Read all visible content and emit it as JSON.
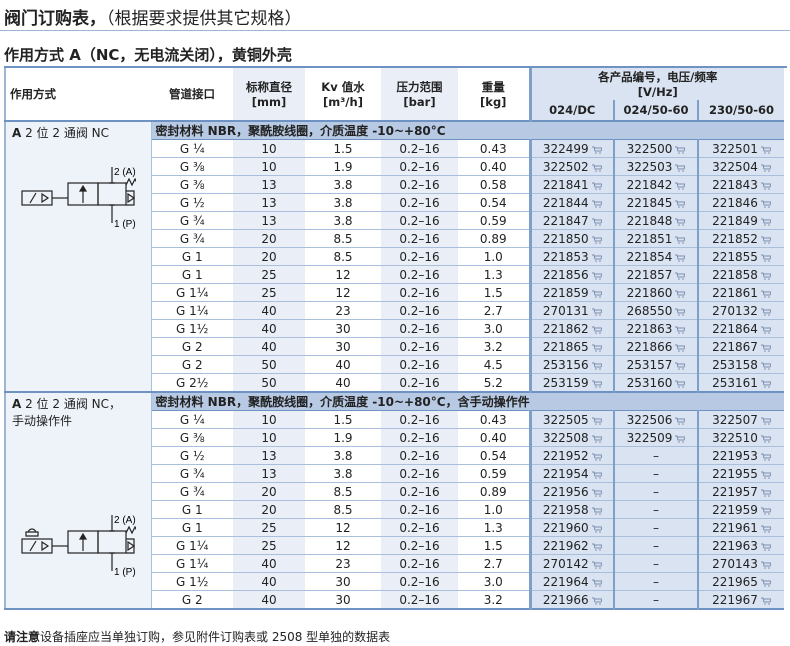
{
  "title": {
    "main": "阀门订购表，",
    "paren": "（根据要求提供其它规格）"
  },
  "subtitle": "作用方式 A（NC，无电流关闭），黄铜外壳",
  "headers": {
    "mode": "作用方式",
    "port": "管道接口",
    "dn": "标称直径",
    "dn_unit": "[mm]",
    "kv": "Kv 值水",
    "kv_unit": "[m³/h]",
    "pressure": "压力范围",
    "pressure_unit": "[bar]",
    "weight": "重量",
    "weight_unit": "[kg]",
    "codes": "各产品编号，电压/频率",
    "codes_unit": "[V/Hz]",
    "v1": "024/DC",
    "v2": "024/50-60",
    "v3": "230/50-60"
  },
  "sections": [
    {
      "valve_bold": "A",
      "valve": " 2 位 2 通阀 NC",
      "valve2": "",
      "note": "密封材料 NBR，聚酰胺线圈，介质温度 -10~+80°C",
      "rows": [
        [
          "G ¼",
          "10",
          "1.5",
          "0.2–16",
          "0.43",
          "322499",
          "322500",
          "322501"
        ],
        [
          "G ⅜",
          "10",
          "1.9",
          "0.2–16",
          "0.40",
          "322502",
          "322503",
          "322504"
        ],
        [
          "G ⅜",
          "13",
          "3.8",
          "0.2–16",
          "0.58",
          "221841",
          "221842",
          "221843"
        ],
        [
          "G ½",
          "13",
          "3.8",
          "0.2–16",
          "0.54",
          "221844",
          "221845",
          "221846"
        ],
        [
          "G ¾",
          "13",
          "3.8",
          "0.2–16",
          "0.59",
          "221847",
          "221848",
          "221849"
        ],
        [
          "G ¾",
          "20",
          "8.5",
          "0.2–16",
          "0.89",
          "221850",
          "221851",
          "221852"
        ],
        [
          "G 1",
          "20",
          "8.5",
          "0.2–16",
          "1.0",
          "221853",
          "221854",
          "221855"
        ],
        [
          "G 1",
          "25",
          "12",
          "0.2–16",
          "1.3",
          "221856",
          "221857",
          "221858"
        ],
        [
          "G 1¼",
          "25",
          "12",
          "0.2–16",
          "1.5",
          "221859",
          "221860",
          "221861"
        ],
        [
          "G 1¼",
          "40",
          "23",
          "0.2–16",
          "2.7",
          "270131",
          "268550",
          "270132"
        ],
        [
          "G 1½",
          "40",
          "30",
          "0.2–16",
          "3.0",
          "221862",
          "221863",
          "221864"
        ],
        [
          "G 2",
          "40",
          "30",
          "0.2–16",
          "3.2",
          "221865",
          "221866",
          "221867"
        ],
        [
          "G 2",
          "50",
          "40",
          "0.2–16",
          "4.5",
          "253156",
          "253157",
          "253158"
        ],
        [
          "G 2½",
          "50",
          "40",
          "0.2–16",
          "5.2",
          "253159",
          "253160",
          "253161"
        ]
      ]
    },
    {
      "valve_bold": "A",
      "valve": " 2 位 2 通阀 NC，",
      "valve2": "手动操作件",
      "note": "密封材料 NBR，聚酰胺线圈，介质温度 -10~+80°C，含手动操作件",
      "rows": [
        [
          "G ¼",
          "10",
          "1.5",
          "0.2–16",
          "0.43",
          "322505",
          "322506",
          "322507"
        ],
        [
          "G ⅜",
          "10",
          "1.9",
          "0.2–16",
          "0.40",
          "322508",
          "322509",
          "322510"
        ],
        [
          "G ½",
          "13",
          "3.8",
          "0.2–16",
          "0.54",
          "221952",
          "–",
          "221953"
        ],
        [
          "G ¾",
          "13",
          "3.8",
          "0.2–16",
          "0.59",
          "221954",
          "–",
          "221955"
        ],
        [
          "G ¾",
          "20",
          "8.5",
          "0.2–16",
          "0.89",
          "221956",
          "–",
          "221957"
        ],
        [
          "G 1",
          "20",
          "8.5",
          "0.2–16",
          "1.0",
          "221958",
          "–",
          "221959"
        ],
        [
          "G 1",
          "25",
          "12",
          "0.2–16",
          "1.3",
          "221960",
          "–",
          "221961"
        ],
        [
          "G 1¼",
          "25",
          "12",
          "0.2–16",
          "1.5",
          "221962",
          "–",
          "221963"
        ],
        [
          "G 1¼",
          "40",
          "23",
          "0.2–16",
          "2.7",
          "270142",
          "–",
          "270143"
        ],
        [
          "G 1½",
          "40",
          "30",
          "0.2–16",
          "3.0",
          "221964",
          "–",
          "221965"
        ],
        [
          "G 2",
          "40",
          "30",
          "0.2–16",
          "3.2",
          "221966",
          "–",
          "221967"
        ]
      ]
    }
  ],
  "symbol": {
    "port2": "2 (A)",
    "port1": "1 (P)"
  },
  "note": {
    "bold": "请注意",
    "text": "设备插座应当单独订购，参见附件订购表或 2508 型单独的数据表"
  },
  "colors": {
    "header": "#b7c9e3",
    "code_bg": "#d9e3f1",
    "light_col": "#eaeff7",
    "border": "#6e92c2"
  }
}
